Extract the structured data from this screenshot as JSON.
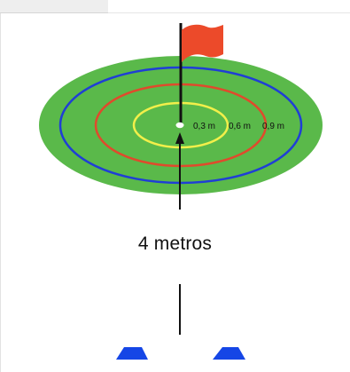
{
  "header": {
    "tab_text": ""
  },
  "diagram": {
    "ring_labels": [
      "0,3 m",
      "0,6 m",
      "0,9 m"
    ],
    "distance_label": "4 metros",
    "colors": {
      "green": "#5ab94a",
      "blue": "#1f3ed6",
      "red": "#e04a2c",
      "yellow": "#f2ef4a",
      "flag": "#ec4a2a",
      "cone": "#1546e6",
      "line": "#111111"
    },
    "icons": [
      "flag-icon",
      "cone-icon"
    ]
  }
}
